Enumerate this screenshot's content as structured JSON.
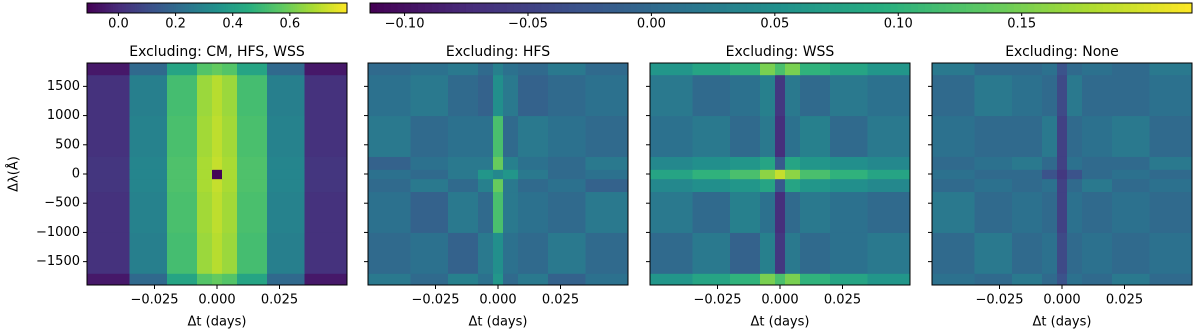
{
  "chart_data": [
    {
      "type": "heatmap",
      "title": "Excluding: CM, HFS, WSS",
      "xlabel": "Δt (days)",
      "ylabel": "Δλ(Å)",
      "show_ytick_labels": true,
      "cmap": "viridis",
      "x_edges": [
        -0.052,
        -0.035,
        -0.02,
        -0.008,
        -0.002,
        0.002,
        0.008,
        0.02,
        0.035,
        0.052
      ],
      "y_edges": [
        -1900,
        -1700,
        -1000,
        -300,
        -80,
        80,
        300,
        1000,
        1700,
        1900
      ],
      "z": [
        [
          -0.05,
          0.2,
          0.42,
          0.55,
          0.58,
          0.55,
          0.42,
          0.2,
          -0.05
        ],
        [
          0.02,
          0.28,
          0.52,
          0.66,
          0.7,
          0.66,
          0.52,
          0.28,
          0.02
        ],
        [
          0.02,
          0.29,
          0.53,
          0.67,
          0.71,
          0.67,
          0.53,
          0.29,
          0.02
        ],
        [
          0.03,
          0.3,
          0.54,
          0.68,
          0.72,
          0.68,
          0.54,
          0.3,
          0.03
        ],
        [
          0.03,
          0.3,
          0.54,
          0.68,
          -0.1,
          0.68,
          0.54,
          0.3,
          0.03
        ],
        [
          0.03,
          0.3,
          0.54,
          0.68,
          0.72,
          0.68,
          0.54,
          0.3,
          0.03
        ],
        [
          0.02,
          0.29,
          0.53,
          0.67,
          0.71,
          0.67,
          0.53,
          0.29,
          0.02
        ],
        [
          0.02,
          0.28,
          0.52,
          0.66,
          0.7,
          0.66,
          0.52,
          0.28,
          0.02
        ],
        [
          -0.05,
          0.2,
          0.42,
          0.55,
          0.58,
          0.55,
          0.42,
          0.2,
          -0.05
        ]
      ],
      "clim": [
        -0.11,
        0.8
      ],
      "colorbar": {
        "ticks": [
          {
            "value": 0,
            "label": "0.0"
          },
          0.2,
          0.4,
          0.6
        ]
      },
      "xlim": [
        -0.052,
        0.052
      ],
      "ylim": [
        -1900,
        1900
      ],
      "xticks": [
        {
          "value": -0.025,
          "label": "−0.025"
        },
        {
          "value": 0,
          "label": "0.000"
        },
        0.025
      ],
      "yticks": [
        {
          "value": -1500,
          "label": "−1500"
        },
        {
          "value": -1000,
          "label": "−1000"
        },
        {
          "value": -500,
          "label": "−500"
        },
        0,
        500,
        1000,
        1500
      ]
    },
    {
      "type": "heatmap",
      "title": "Excluding: HFS",
      "xlabel": "Δt (days)",
      "show_ytick_labels": false,
      "cmap": "viridis",
      "x_edges": [
        -0.052,
        -0.035,
        -0.02,
        -0.008,
        -0.002,
        0.002,
        0.008,
        0.02,
        0.035,
        0.052
      ],
      "y_edges": [
        -1900,
        -1700,
        -1000,
        -300,
        -80,
        80,
        300,
        1000,
        1700,
        1900
      ],
      "z": [
        [
          0.02,
          0.0,
          0.03,
          0.01,
          0.06,
          0.0,
          0.02,
          -0.01,
          0.01
        ],
        [
          0.0,
          0.01,
          -0.01,
          0.02,
          0.05,
          0.01,
          0.0,
          0.02,
          0.0
        ],
        [
          0.01,
          -0.01,
          0.02,
          0.0,
          0.12,
          0.02,
          0.01,
          0.0,
          0.02
        ],
        [
          0.0,
          0.02,
          0.0,
          0.03,
          0.14,
          0.02,
          0.0,
          0.01,
          -0.01
        ],
        [
          0.01,
          0.0,
          0.02,
          0.06,
          0.04,
          0.06,
          0.02,
          0.0,
          0.01
        ],
        [
          -0.01,
          0.01,
          0.02,
          0.02,
          0.14,
          0.03,
          0.01,
          0.0,
          0.02
        ],
        [
          0.02,
          0.0,
          0.01,
          0.01,
          0.12,
          0.0,
          0.02,
          0.01,
          0.0
        ],
        [
          0.01,
          0.02,
          0.0,
          -0.01,
          0.05,
          0.02,
          -0.01,
          0.0,
          0.01
        ],
        [
          0.0,
          0.01,
          0.02,
          0.0,
          0.03,
          0.01,
          0.0,
          0.02,
          0.0
        ]
      ],
      "clim": [
        -0.114,
        0.219
      ],
      "colorbar": {
        "ticks": [
          {
            "value": -0.1,
            "label": "−0.10"
          },
          {
            "value": -0.05,
            "label": "−0.05"
          },
          {
            "value": 0,
            "label": "0.00"
          },
          0.05,
          {
            "value": 0.1,
            "label": "0.10"
          },
          0.15
        ]
      },
      "xlim": [
        -0.052,
        0.052
      ],
      "ylim": [
        -1900,
        1900
      ],
      "xticks": [
        {
          "value": -0.025,
          "label": "−0.025"
        },
        {
          "value": 0,
          "label": "0.000"
        },
        0.025
      ],
      "yticks": [
        -1500,
        -1000,
        -500,
        0,
        500,
        1000,
        1500
      ]
    },
    {
      "type": "heatmap",
      "title": "Excluding: WSS",
      "xlabel": "Δt (days)",
      "show_ytick_labels": false,
      "cmap": "viridis",
      "x_edges": [
        -0.052,
        -0.035,
        -0.02,
        -0.008,
        -0.002,
        0.002,
        0.008,
        0.02,
        0.035,
        0.052
      ],
      "y_edges": [
        -1900,
        -1700,
        -1000,
        -300,
        -80,
        80,
        300,
        1000,
        1700,
        1900
      ],
      "z": [
        [
          0.06,
          0.08,
          0.1,
          0.15,
          0.12,
          0.15,
          0.1,
          0.08,
          0.06
        ],
        [
          0.0,
          0.02,
          -0.01,
          0.03,
          -0.06,
          0.02,
          0.0,
          0.01,
          0.02
        ],
        [
          0.02,
          0.0,
          0.03,
          0.01,
          -0.07,
          0.0,
          0.02,
          0.01,
          0.0
        ],
        [
          0.04,
          0.05,
          0.06,
          0.08,
          -0.02,
          0.08,
          0.06,
          0.05,
          0.04
        ],
        [
          0.08,
          0.1,
          0.12,
          0.16,
          0.19,
          0.16,
          0.12,
          0.1,
          0.08
        ],
        [
          0.04,
          0.05,
          0.06,
          0.08,
          -0.02,
          0.08,
          0.06,
          0.05,
          0.04
        ],
        [
          0.01,
          0.02,
          0.0,
          0.02,
          -0.07,
          0.01,
          0.03,
          0.0,
          0.02
        ],
        [
          0.02,
          0.0,
          0.01,
          0.03,
          -0.06,
          0.02,
          0.0,
          0.02,
          0.01
        ],
        [
          0.06,
          0.08,
          0.1,
          0.15,
          0.12,
          0.15,
          0.1,
          0.08,
          0.06
        ]
      ],
      "clim": [
        -0.114,
        0.219
      ],
      "xlim": [
        -0.052,
        0.052
      ],
      "ylim": [
        -1900,
        1900
      ],
      "xticks": [
        {
          "value": -0.025,
          "label": "−0.025"
        },
        {
          "value": 0,
          "label": "0.000"
        },
        0.025
      ],
      "yticks": [
        -1500,
        -1000,
        -500,
        0,
        500,
        1000,
        1500
      ]
    },
    {
      "type": "heatmap",
      "title": "Excluding: None",
      "xlabel": "Δt (days)",
      "show_ytick_labels": false,
      "cmap": "viridis",
      "x_edges": [
        -0.052,
        -0.035,
        -0.02,
        -0.008,
        -0.002,
        0.002,
        0.008,
        0.02,
        0.035,
        0.052
      ],
      "y_edges": [
        -1900,
        -1700,
        -1000,
        -300,
        -80,
        80,
        300,
        1000,
        1700,
        1900
      ],
      "z": [
        [
          0.01,
          0.0,
          0.02,
          0.0,
          -0.03,
          0.01,
          0.0,
          0.02,
          0.0
        ],
        [
          0.0,
          0.02,
          0.0,
          0.01,
          -0.04,
          0.0,
          0.01,
          0.0,
          0.01
        ],
        [
          0.02,
          0.0,
          0.01,
          0.0,
          -0.05,
          0.01,
          0.0,
          0.01,
          0.0
        ],
        [
          0.0,
          0.01,
          0.0,
          0.01,
          -0.05,
          0.0,
          0.02,
          0.0,
          0.01
        ],
        [
          0.01,
          0.0,
          0.0,
          -0.03,
          -0.06,
          -0.03,
          0.0,
          0.01,
          0.0
        ],
        [
          0.0,
          0.01,
          0.02,
          0.0,
          -0.05,
          0.01,
          0.0,
          0.0,
          0.02
        ],
        [
          0.01,
          0.0,
          0.0,
          0.02,
          -0.05,
          0.0,
          0.01,
          0.02,
          0.0
        ],
        [
          0.0,
          0.02,
          0.01,
          0.0,
          -0.04,
          0.02,
          0.0,
          0.0,
          0.01
        ],
        [
          0.02,
          0.0,
          0.0,
          0.01,
          -0.03,
          0.0,
          0.01,
          0.0,
          0.02
        ]
      ],
      "clim": [
        -0.114,
        0.219
      ],
      "xlim": [
        -0.052,
        0.052
      ],
      "ylim": [
        -1900,
        1900
      ],
      "xticks": [
        {
          "value": -0.025,
          "label": "−0.025"
        },
        {
          "value": 0,
          "label": "0.000"
        },
        0.025
      ],
      "yticks": [
        -1500,
        -1000,
        -500,
        0,
        500,
        1000,
        1500
      ]
    }
  ]
}
